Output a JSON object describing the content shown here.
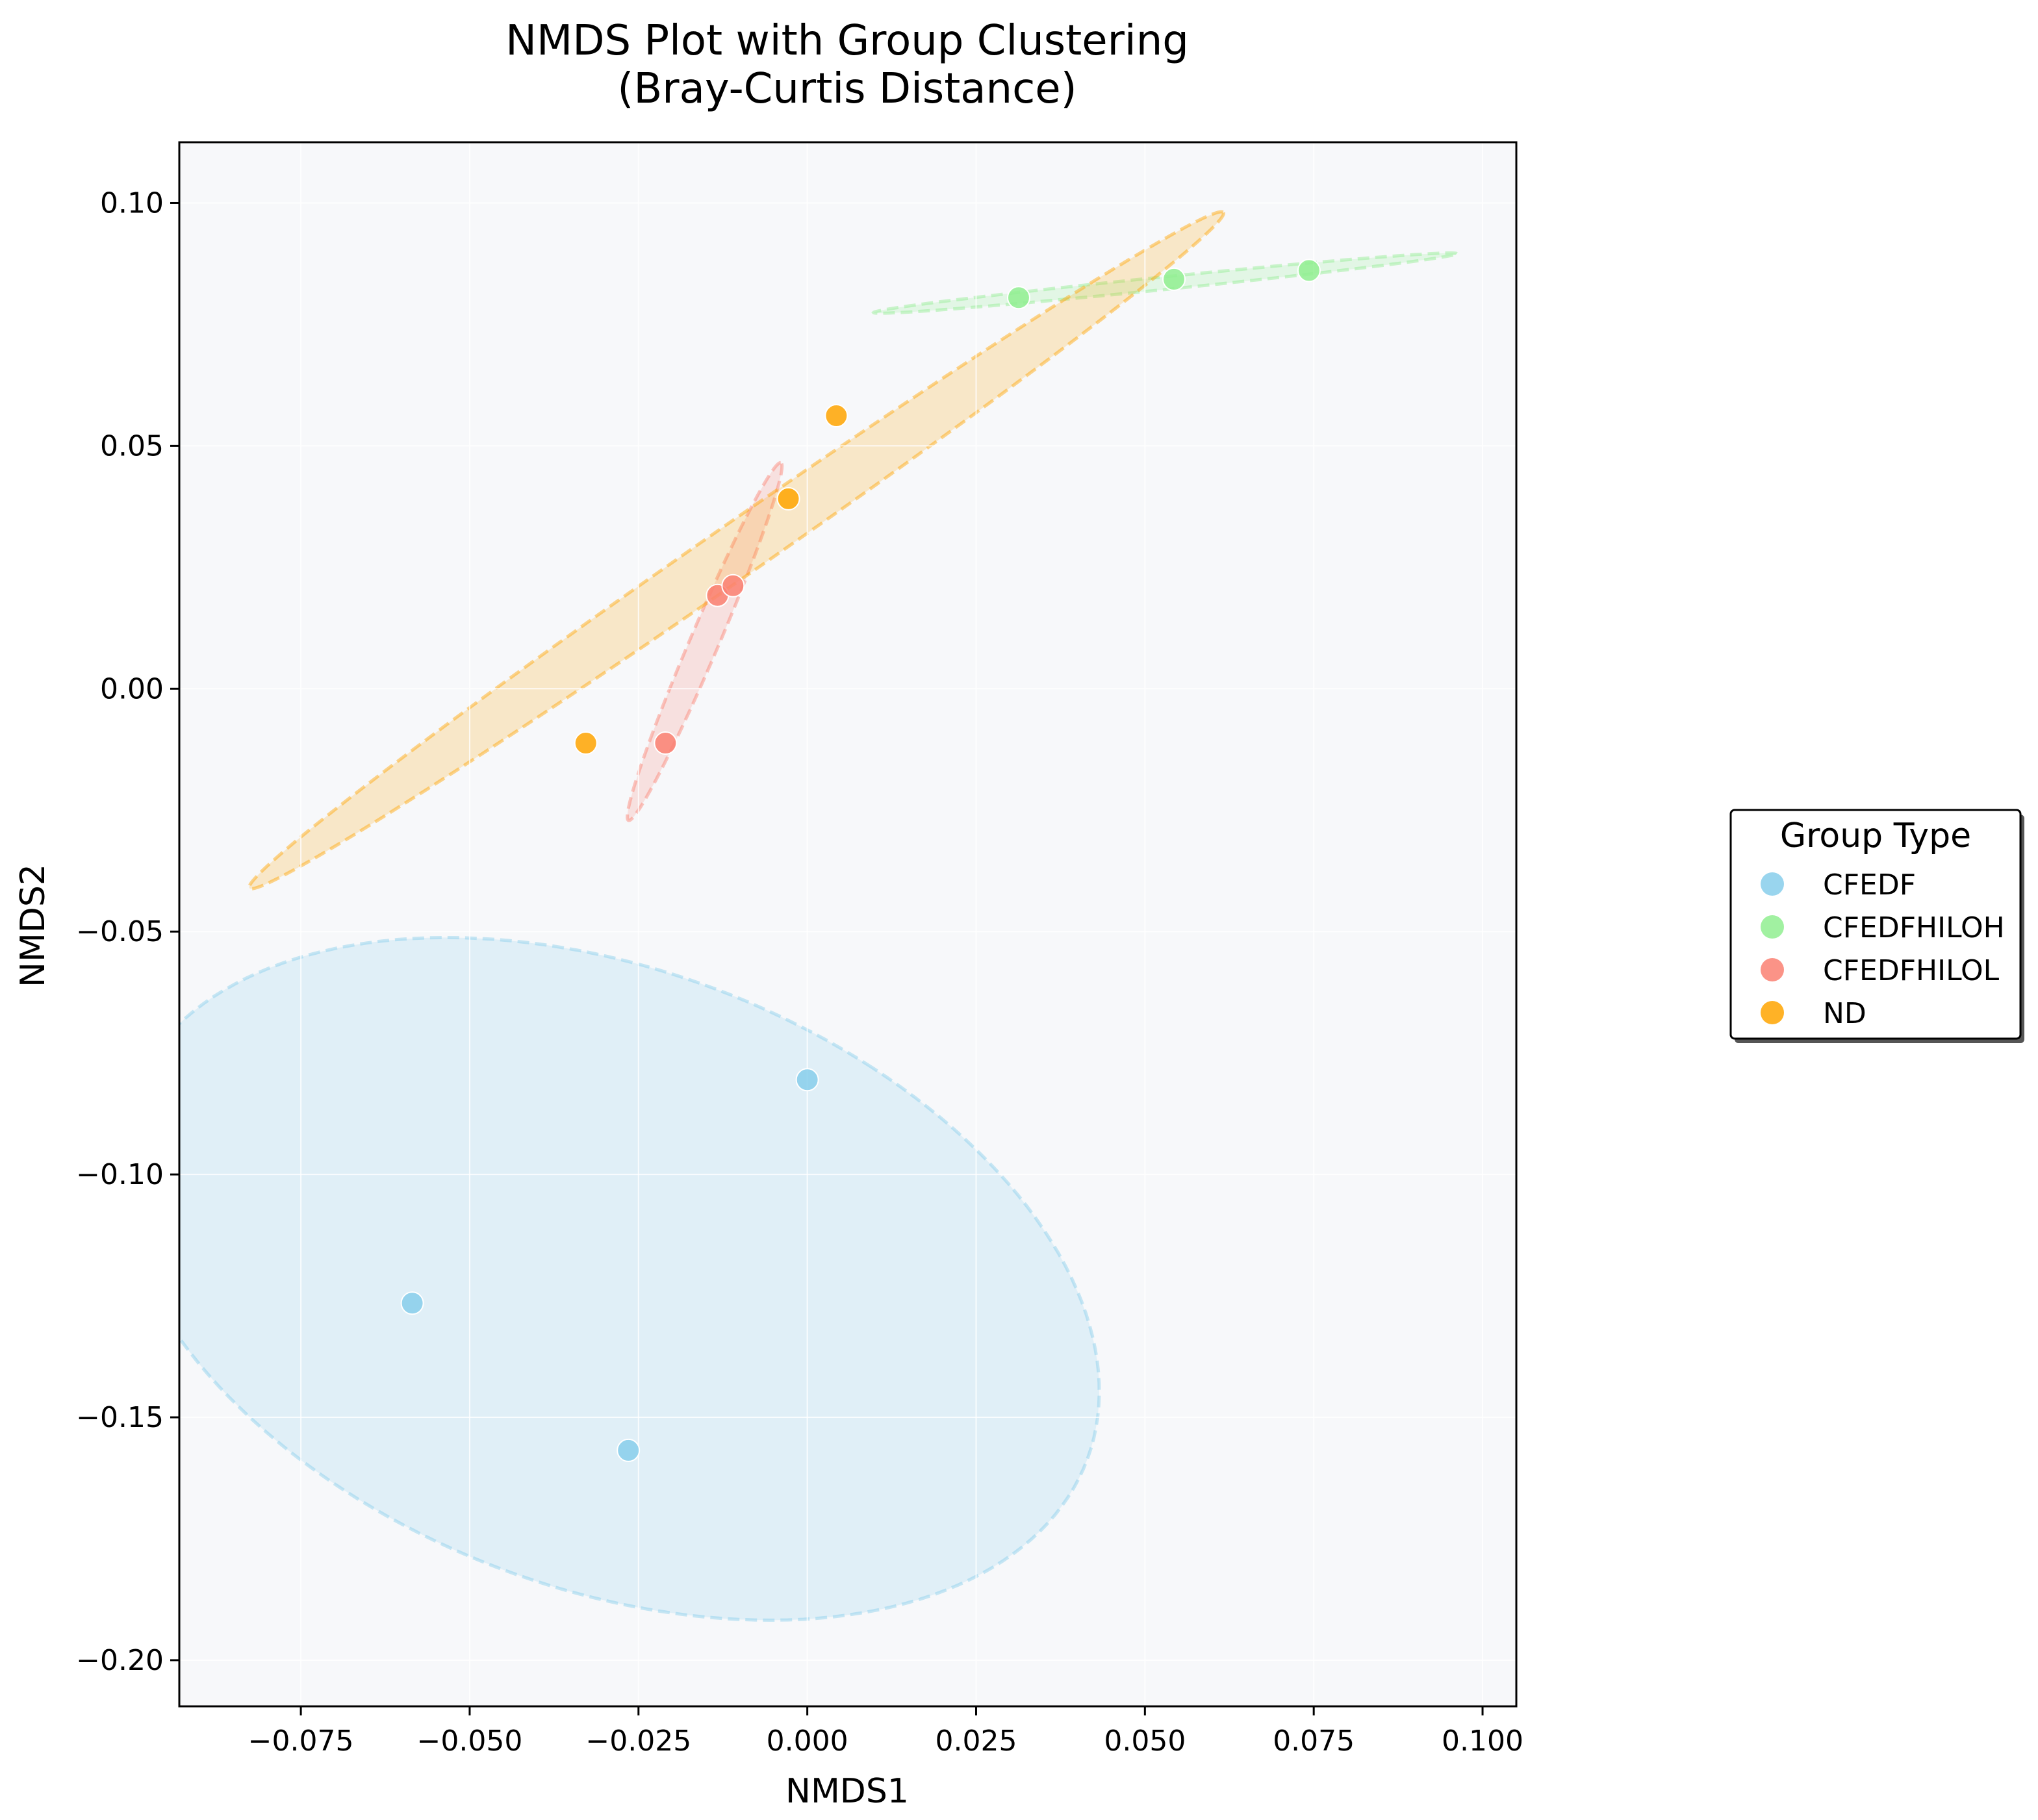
{
  "chart_data": {
    "type": "scatter",
    "title": "NMDS Plot with Group Clustering",
    "subtitle": "(Bray-Curtis Distance)",
    "xlabel": "NMDS1",
    "ylabel": "NMDS2",
    "xlim": [
      -0.093,
      0.105
    ],
    "ylim": [
      -0.2095,
      0.1125
    ],
    "xticks": [
      -0.075,
      -0.05,
      -0.025,
      0.0,
      0.025,
      0.05,
      0.075,
      0.1
    ],
    "xtick_labels": [
      "−0.075",
      "−0.050",
      "−0.025",
      "0.000",
      "0.025",
      "0.050",
      "0.075",
      "0.100"
    ],
    "yticks": [
      0.1,
      0.05,
      0.0,
      -0.05,
      -0.1,
      -0.15,
      -0.2
    ],
    "ytick_labels": [
      "0.10",
      "0.05",
      "0.00",
      "−0.05",
      "−0.10",
      "−0.15",
      "−0.20"
    ],
    "grid": true,
    "plot_background": "#f7f8fa",
    "legend": {
      "title": "Group Type",
      "placement": "outside-right"
    },
    "series": [
      {
        "name": "CFEDF",
        "color": "#87ceeb",
        "points": [
          [
            0.0,
            -0.0805
          ],
          [
            -0.0585,
            -0.1265
          ],
          [
            -0.0265,
            -0.1568
          ]
        ],
        "ellipse": {
          "cx": -0.0295,
          "cy": -0.1215,
          "rx": 0.0585,
          "ry": 0.0825,
          "angle_deg": 48
        }
      },
      {
        "name": "CFEDFHILOH",
        "color": "#90ee90",
        "points": [
          [
            0.0313,
            0.0805
          ],
          [
            0.0543,
            0.0843
          ],
          [
            0.0743,
            0.0861
          ]
        ],
        "ellipse": {
          "cx": 0.053,
          "cy": 0.0835,
          "rx": 0.0436,
          "ry": 0.0013,
          "angle_deg": 8
        }
      },
      {
        "name": "CFEDFHILOL",
        "color": "#fa8072",
        "points": [
          [
            -0.021,
            -0.0112
          ],
          [
            -0.0133,
            0.0192
          ],
          [
            -0.011,
            0.0212
          ]
        ],
        "ellipse": {
          "cx": -0.0152,
          "cy": 0.0097,
          "rx": 0.0385,
          "ry": 0.0022,
          "angle_deg": 73
        }
      },
      {
        "name": "ND",
        "color": "#ffa500",
        "points": [
          [
            -0.0328,
            -0.0112
          ],
          [
            -0.0028,
            0.0391
          ],
          [
            0.0043,
            0.0562
          ]
        ],
        "ellipse": {
          "cx": -0.0105,
          "cy": 0.0285,
          "rx": 0.1002,
          "ry": 0.0048,
          "angle_deg": 44
        }
      }
    ]
  }
}
